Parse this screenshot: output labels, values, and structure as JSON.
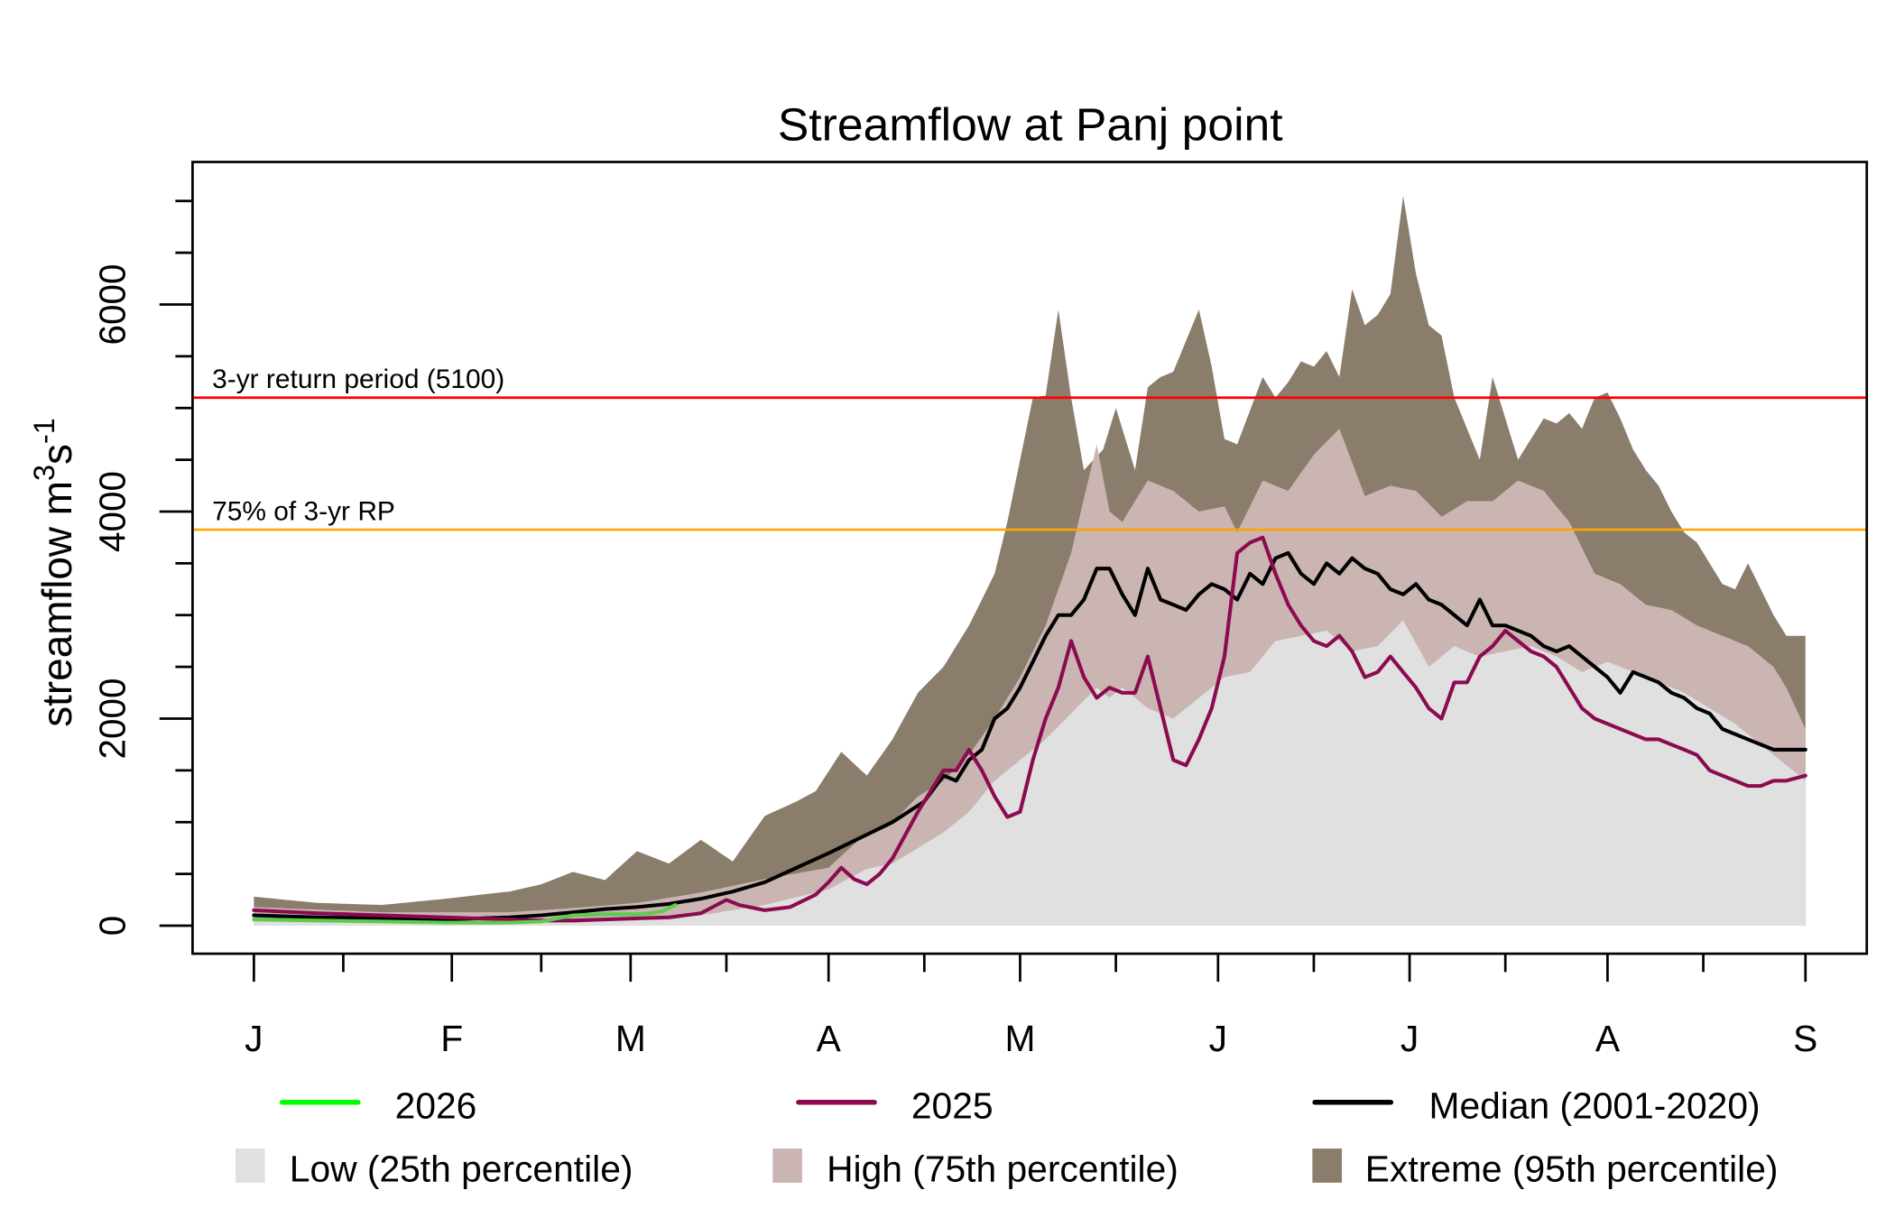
{
  "chart_data": {
    "type": "area",
    "title": "Streamflow at Panj point",
    "xlabel": "",
    "ylabel": "streamflow m3s-1",
    "ylabel_parts": {
      "base": "streamflow m",
      "sup1": "3",
      "mid": "s",
      "sup2": "-1"
    },
    "ylim": [
      -300,
      7200
    ],
    "yticks_major": [
      0,
      2000,
      4000,
      6000
    ],
    "yticks_major_labels": [
      "0",
      "2000",
      "4000",
      "6000"
    ],
    "yticks_minor": [
      0,
      500,
      1000,
      1500,
      2000,
      2500,
      3000,
      3500,
      4000,
      4500,
      5000,
      5500,
      6000,
      6500,
      7000
    ],
    "x_unit": "day of year (0 = Jan 1)",
    "xlim": [
      -12,
      258
    ],
    "xticks_major": [
      0,
      31,
      59,
      90,
      120,
      151,
      181,
      212,
      243
    ],
    "xticks_major_labels": [
      "J",
      "F",
      "M",
      "A",
      "M",
      "J",
      "J",
      "A",
      "S"
    ],
    "xticks_minor": [
      14,
      45,
      74,
      105,
      135,
      166,
      196,
      227
    ],
    "grid": false,
    "reference_lines": [
      {
        "name": "3-yr return period",
        "value": 5100,
        "label": "3-yr return period (5100)",
        "color": "#ff0000"
      },
      {
        "name": "75% of 3-yr RP",
        "value": 3825,
        "label": "75% of 3-yr RP",
        "color": "#ffa500"
      }
    ],
    "bands": [
      {
        "name": "Extreme (95th percentile)",
        "color": "#8b7d6b",
        "x": [
          0,
          10,
          20,
          30,
          40,
          45,
          50,
          55,
          60,
          65,
          70,
          75,
          80,
          85,
          88,
          92,
          96,
          100,
          104,
          108,
          112,
          116,
          118,
          122,
          124,
          126,
          128,
          130,
          133,
          135,
          138,
          140,
          142,
          144,
          148,
          150,
          152,
          154,
          158,
          160,
          162,
          164,
          166,
          168,
          170,
          172,
          174,
          176,
          178,
          180,
          182,
          184,
          186,
          188,
          190,
          192,
          194,
          196,
          198,
          200,
          202,
          204,
          206,
          208,
          210,
          212,
          214,
          216,
          218,
          220,
          222,
          224,
          226,
          228,
          230,
          232,
          234,
          236,
          238,
          240,
          243
        ],
        "values": [
          280,
          220,
          200,
          260,
          330,
          400,
          520,
          440,
          720,
          600,
          830,
          620,
          1060,
          1200,
          1300,
          1680,
          1450,
          1800,
          2250,
          2500,
          2900,
          3400,
          3900,
          5100,
          5120,
          5950,
          5100,
          4400,
          4600,
          5000,
          4400,
          5200,
          5300,
          5350,
          5950,
          5400,
          4700,
          4650,
          5300,
          5100,
          5250,
          5450,
          5400,
          5550,
          5300,
          6150,
          5800,
          5900,
          6100,
          7050,
          6300,
          5800,
          5700,
          5100,
          4800,
          4500,
          5300,
          4900,
          4500,
          4700,
          4900,
          4850,
          4950,
          4800,
          5100,
          5150,
          4900,
          4600,
          4400,
          4250,
          4000,
          3800,
          3700,
          3500,
          3300,
          3250,
          3500,
          3250,
          3000,
          2800,
          2800
        ],
        "lower": "high"
      },
      {
        "name": "High (75th percentile)",
        "color": "#cbb5b3",
        "x": [
          0,
          20,
          40,
          50,
          60,
          70,
          80,
          90,
          96,
          100,
          104,
          108,
          112,
          116,
          120,
          124,
          128,
          132,
          134,
          136,
          140,
          144,
          148,
          152,
          154,
          158,
          162,
          166,
          170,
          174,
          178,
          182,
          186,
          190,
          194,
          198,
          202,
          206,
          210,
          214,
          218,
          222,
          226,
          230,
          234,
          238,
          240,
          243
        ],
        "values": [
          180,
          130,
          130,
          170,
          220,
          320,
          450,
          560,
          900,
          1000,
          1250,
          1400,
          1650,
          2000,
          2400,
          2900,
          3600,
          4650,
          4000,
          3900,
          4300,
          4200,
          4000,
          4050,
          3800,
          4300,
          4200,
          4550,
          4800,
          4150,
          4250,
          4200,
          3950,
          4100,
          4100,
          4300,
          4200,
          3900,
          3400,
          3300,
          3100,
          3050,
          2900,
          2800,
          2700,
          2500,
          2300,
          1900
        ],
        "lower": "low"
      },
      {
        "name": "Low (25th percentile)",
        "color": "#e0e0e0",
        "x": [
          0,
          20,
          40,
          60,
          70,
          80,
          90,
          96,
          100,
          104,
          108,
          112,
          116,
          120,
          124,
          128,
          132,
          134,
          136,
          140,
          144,
          148,
          152,
          156,
          160,
          164,
          168,
          172,
          176,
          180,
          184,
          188,
          192,
          196,
          200,
          204,
          208,
          212,
          216,
          220,
          224,
          228,
          232,
          236,
          240,
          243
        ],
        "values": [
          40,
          30,
          30,
          50,
          100,
          200,
          350,
          550,
          600,
          750,
          900,
          1100,
          1400,
          1600,
          1800,
          2050,
          2300,
          2200,
          2300,
          2100,
          2000,
          2200,
          2400,
          2450,
          2750,
          2800,
          2850,
          2650,
          2700,
          2950,
          2500,
          2700,
          2600,
          2650,
          2700,
          2600,
          2450,
          2550,
          2450,
          2350,
          2250,
          2100,
          1950,
          1750,
          1550,
          1400
        ],
        "lower": null
      }
    ],
    "series": [
      {
        "name": "Median (2001-2020)",
        "color": "#000000",
        "x": [
          0,
          10,
          20,
          30,
          40,
          45,
          50,
          55,
          60,
          65,
          70,
          75,
          80,
          85,
          90,
          95,
          100,
          105,
          108,
          110,
          112,
          114,
          116,
          118,
          120,
          122,
          124,
          126,
          128,
          130,
          132,
          134,
          136,
          138,
          140,
          142,
          144,
          146,
          148,
          150,
          152,
          154,
          156,
          158,
          160,
          162,
          164,
          166,
          168,
          170,
          172,
          174,
          176,
          178,
          180,
          182,
          184,
          186,
          188,
          190,
          192,
          194,
          196,
          198,
          200,
          202,
          204,
          206,
          208,
          210,
          212,
          214,
          216,
          218,
          220,
          222,
          224,
          226,
          228,
          230,
          232,
          234,
          236,
          238,
          240,
          243
        ],
        "values": [
          100,
          80,
          70,
          60,
          80,
          100,
          130,
          160,
          180,
          210,
          260,
          330,
          420,
          560,
          700,
          850,
          1000,
          1200,
          1450,
          1400,
          1600,
          1700,
          2000,
          2100,
          2300,
          2550,
          2800,
          3000,
          3000,
          3150,
          3450,
          3450,
          3200,
          3000,
          3450,
          3150,
          3100,
          3050,
          3200,
          3300,
          3250,
          3150,
          3400,
          3300,
          3550,
          3600,
          3400,
          3300,
          3500,
          3400,
          3550,
          3450,
          3400,
          3250,
          3200,
          3300,
          3150,
          3100,
          3000,
          2900,
          3150,
          2900,
          2900,
          2850,
          2800,
          2700,
          2650,
          2700,
          2600,
          2500,
          2400,
          2250,
          2450,
          2400,
          2350,
          2250,
          2200,
          2100,
          2050,
          1900,
          1850,
          1800,
          1750,
          1700,
          1700,
          1700
        ],
        "width": 3
      },
      {
        "name": "2025",
        "color": "#8b0a50",
        "x": [
          0,
          10,
          20,
          30,
          40,
          45,
          50,
          55,
          60,
          65,
          70,
          74,
          76,
          80,
          84,
          88,
          90,
          92,
          94,
          96,
          98,
          100,
          104,
          106,
          108,
          110,
          112,
          114,
          116,
          118,
          120,
          122,
          124,
          126,
          128,
          130,
          132,
          134,
          136,
          138,
          140,
          142,
          144,
          146,
          148,
          150,
          152,
          154,
          156,
          158,
          160,
          162,
          164,
          166,
          168,
          170,
          172,
          174,
          176,
          178,
          180,
          182,
          184,
          186,
          188,
          190,
          192,
          194,
          196,
          198,
          200,
          202,
          204,
          206,
          208,
          210,
          212,
          214,
          216,
          218,
          220,
          222,
          224,
          226,
          228,
          230,
          232,
          234,
          236,
          238,
          240,
          243
        ],
        "values": [
          150,
          120,
          100,
          80,
          60,
          50,
          50,
          60,
          70,
          80,
          120,
          250,
          200,
          150,
          180,
          300,
          420,
          560,
          450,
          400,
          500,
          650,
          1100,
          1300,
          1500,
          1500,
          1700,
          1500,
          1250,
          1050,
          1100,
          1600,
          2000,
          2300,
          2750,
          2400,
          2200,
          2300,
          2250,
          2250,
          2600,
          2100,
          1600,
          1550,
          1800,
          2100,
          2600,
          3600,
          3700,
          3750,
          3400,
          3100,
          2900,
          2750,
          2700,
          2800,
          2650,
          2400,
          2450,
          2600,
          2450,
          2300,
          2100,
          2000,
          2350,
          2350,
          2600,
          2700,
          2850,
          2750,
          2650,
          2600,
          2500,
          2300,
          2100,
          2000,
          1950,
          1900,
          1850,
          1800,
          1800,
          1750,
          1700,
          1650,
          1500,
          1450,
          1400,
          1350,
          1350,
          1400,
          1400,
          1450
        ],
        "width": 3
      },
      {
        "name": "2026",
        "color": "#00ff00",
        "plot_color": "#5ccd4b",
        "x": [
          0,
          10,
          20,
          30,
          40,
          45,
          50,
          55,
          60,
          62,
          64,
          66
        ],
        "values": [
          60,
          50,
          40,
          30,
          30,
          40,
          100,
          110,
          110,
          120,
          140,
          200
        ],
        "width": 3
      }
    ],
    "legend": {
      "placement": "bottom",
      "entries": [
        {
          "label": "2026",
          "kind": "line",
          "color": "#00ff00"
        },
        {
          "label": "2025",
          "kind": "line",
          "color": "#8b0a50"
        },
        {
          "label": "Median (2001-2020)",
          "kind": "line",
          "color": "#000000"
        },
        {
          "label": "Low (25th percentile)",
          "kind": "box",
          "color": "#e0e0e0"
        },
        {
          "label": "High (75th percentile)",
          "kind": "box",
          "color": "#cbb5b3"
        },
        {
          "label": "Extreme (95th percentile)",
          "kind": "box",
          "color": "#8b7d6b"
        }
      ]
    }
  }
}
